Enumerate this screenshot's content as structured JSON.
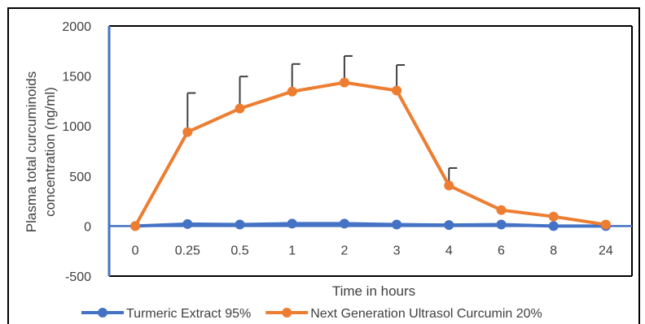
{
  "chart_data": {
    "type": "line",
    "title": "",
    "xlabel": "Time in hours",
    "ylabel_lines": [
      "Plasma total curcuminoids",
      "concentration (ng/ml)"
    ],
    "categories": [
      "0",
      "0.25",
      "0.5",
      "1",
      "2",
      "3",
      "4",
      "6",
      "8",
      "24"
    ],
    "ylim": [
      -500,
      2000
    ],
    "yticks": [
      -500,
      0,
      500,
      1000,
      1500,
      2000
    ],
    "ytick_labels": [
      "-500",
      "0",
      "500",
      "1000",
      "1500",
      "2000"
    ],
    "grid": false,
    "legend_position": "bottom",
    "series": [
      {
        "name": "Turmeric Extract 95%",
        "color": "#4472C4",
        "values": [
          0,
          20,
          15,
          25,
          25,
          15,
          10,
          15,
          0,
          0
        ],
        "error_bars": null
      },
      {
        "name": "Next Generation Ultrasol Curcumin 20%",
        "color": "#ED7D31",
        "values": [
          0,
          940,
          1175,
          1345,
          1435,
          1355,
          405,
          160,
          95,
          15
        ],
        "error_bars": [
          0,
          390,
          320,
          275,
          265,
          255,
          175,
          0,
          0,
          0
        ]
      }
    ]
  }
}
